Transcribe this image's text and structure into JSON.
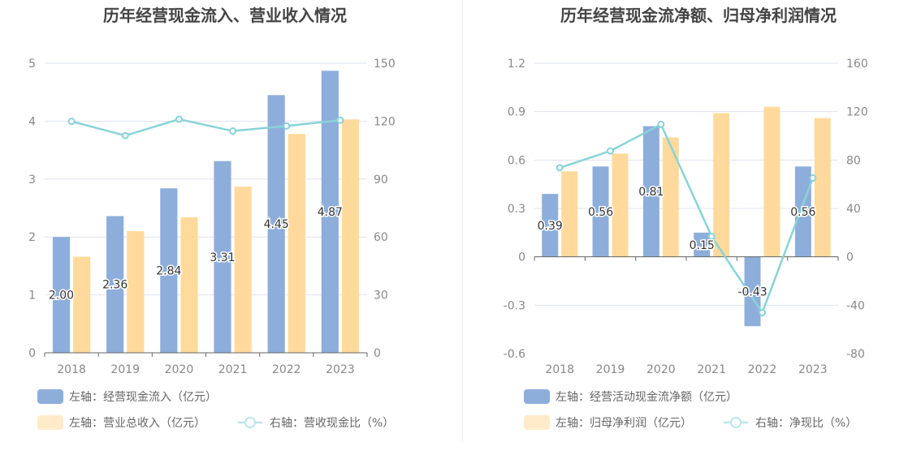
{
  "colors": {
    "blue": "#8DAEDB",
    "orange": "#FFDA9C",
    "orange_legend": "#FFEBC9",
    "line": "#88D3D8",
    "grid": "#DFE3EF",
    "axis_text": "#888888",
    "title_text": "#444444",
    "legend_text": "#666666"
  },
  "chart_data": [
    {
      "type": "bar+line",
      "title": "历年经营现金流入、营业收入情况",
      "categories": [
        "2018",
        "2019",
        "2020",
        "2021",
        "2022",
        "2023"
      ],
      "left_axis": {
        "ticks": [
          "0",
          "1",
          "2",
          "3",
          "4",
          "5"
        ],
        "min": 0,
        "max": 5
      },
      "right_axis": {
        "ticks": [
          "0",
          "30",
          "60",
          "90",
          "120",
          "150"
        ],
        "min": 0,
        "max": 150
      },
      "series": [
        {
          "name": "左轴：经营现金流入（亿元）",
          "axis": "left",
          "kind": "bar",
          "color": "#8DAEDB",
          "values": [
            2.0,
            2.36,
            2.84,
            3.31,
            4.45,
            4.87
          ],
          "labels": [
            "2.00",
            "2.36",
            "2.84",
            "3.31",
            "4.45",
            "4.87"
          ]
        },
        {
          "name": "左轴：营业总收入（亿元）",
          "axis": "left",
          "kind": "bar",
          "color": "#FFDA9C",
          "values": [
            1.66,
            2.1,
            2.34,
            2.87,
            3.78,
            4.03
          ]
        },
        {
          "name": "右轴：营收现金比（%）",
          "axis": "right",
          "kind": "line",
          "color": "#88D3D8",
          "values": [
            119.9,
            112.5,
            121.0,
            114.9,
            117.5,
            120.5
          ]
        }
      ],
      "grid": true,
      "legend_position": "bottom-left"
    },
    {
      "type": "bar+line",
      "title": "历年经营现金流净额、归母净利润情况",
      "categories": [
        "2018",
        "2019",
        "2020",
        "2021",
        "2022",
        "2023"
      ],
      "left_axis": {
        "ticks": [
          "-0.6",
          "-0.3",
          "0",
          "0.3",
          "0.6",
          "0.9",
          "1.2"
        ],
        "min": -0.6,
        "max": 1.2
      },
      "right_axis": {
        "ticks": [
          "-80",
          "-40",
          "0",
          "40",
          "80",
          "120",
          "160"
        ],
        "min": -80,
        "max": 160
      },
      "series": [
        {
          "name": "左轴：经营活动现金流净额（亿元）",
          "axis": "left",
          "kind": "bar",
          "color": "#8DAEDB",
          "values": [
            0.39,
            0.56,
            0.81,
            0.15,
            -0.43,
            0.56
          ],
          "labels": [
            "0.39",
            "0.56",
            "0.81",
            "0.15",
            "-0.43",
            "0.56"
          ]
        },
        {
          "name": "左轴：归母净利润（亿元）",
          "axis": "left",
          "kind": "bar",
          "color": "#FFDA9C",
          "values": [
            0.53,
            0.64,
            0.74,
            0.89,
            0.93,
            0.86
          ]
        },
        {
          "name": "右轴：净现比（%）",
          "axis": "right",
          "kind": "line",
          "color": "#88D3D8",
          "values": [
            73.6,
            87.5,
            109.5,
            16.9,
            -46.2,
            65.1
          ]
        }
      ],
      "grid": true,
      "legend_position": "bottom-left"
    }
  ]
}
